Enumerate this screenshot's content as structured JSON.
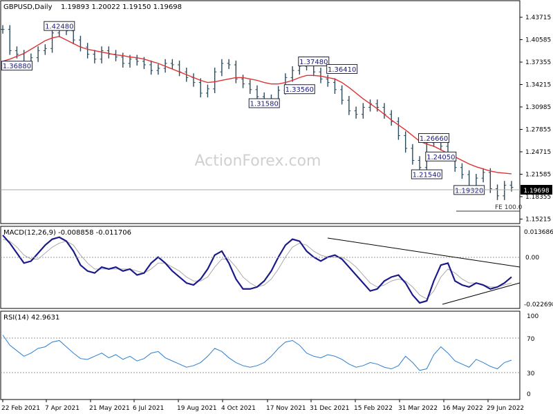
{
  "chart_data": [
    {
      "type": "ohlc",
      "title": "GBPUSD,Daily",
      "ohlc_readout": "1.19893 1.20022 1.19150 1.19698",
      "last_price_label": "1.19698",
      "watermark": "ActionForex.com",
      "y_ticks": [
        "1.43715",
        "1.40585",
        "1.37355",
        "1.34215",
        "1.30985",
        "1.27855",
        "1.24715",
        "1.21585",
        "1.18355",
        "1.15215"
      ],
      "x_labels": [
        "22 Feb 2021",
        "7 Apr 2021",
        "21 May 2021",
        "6 Jul 2021",
        "19 Aug 2021",
        "4 Oct 2021",
        "17 Nov 2021",
        "31 Dec 2021",
        "15 Feb 2022",
        "31 Mar 2022",
        "16 May 2022",
        "29 Jun 2022"
      ],
      "price_close_series": [
        1.42,
        1.39,
        1.385,
        1.37,
        1.38,
        1.39,
        1.393,
        1.415,
        1.424,
        1.418,
        1.405,
        1.395,
        1.385,
        1.378,
        1.39,
        1.385,
        1.381,
        1.372,
        1.378,
        1.375,
        1.37,
        1.362,
        1.365,
        1.372,
        1.37,
        1.36,
        1.352,
        1.345,
        1.33,
        1.336,
        1.36,
        1.372,
        1.37,
        1.35,
        1.343,
        1.335,
        1.325,
        1.318,
        1.322,
        1.334,
        1.352,
        1.362,
        1.368,
        1.37,
        1.36,
        1.35,
        1.345,
        1.335,
        1.32,
        1.305,
        1.3,
        1.31,
        1.315,
        1.31,
        1.3,
        1.29,
        1.27,
        1.252,
        1.235,
        1.225,
        1.26,
        1.265,
        1.255,
        1.24,
        1.225,
        1.215,
        1.195,
        1.21,
        1.218,
        1.195,
        1.185,
        1.2,
        1.197
      ],
      "ma_series": [
        1.375,
        1.378,
        1.382,
        1.386,
        1.392,
        1.398,
        1.404,
        1.408,
        1.41,
        1.405,
        1.4,
        1.395,
        1.392,
        1.39,
        1.388,
        1.386,
        1.384,
        1.383,
        1.381,
        1.38,
        1.378,
        1.375,
        1.372,
        1.368,
        1.364,
        1.36,
        1.356,
        1.352,
        1.348,
        1.345,
        1.346,
        1.348,
        1.35,
        1.352,
        1.352,
        1.35,
        1.348,
        1.345,
        1.343,
        1.343,
        1.345,
        1.348,
        1.352,
        1.355,
        1.355,
        1.354,
        1.352,
        1.35,
        1.345,
        1.338,
        1.33,
        1.322,
        1.315,
        1.308,
        1.3,
        1.292,
        1.285,
        1.278,
        1.27,
        1.262,
        1.258,
        1.255,
        1.25,
        1.245,
        1.24,
        1.235,
        1.23,
        1.226,
        1.223,
        1.22,
        1.218,
        1.217,
        1.216
      ],
      "annotations": [
        {
          "label": "1.42480",
          "x_index": 8
        },
        {
          "label": "1.36880",
          "x_index": 2
        },
        {
          "label": "1.37480",
          "x_index": 44
        },
        {
          "label": "1.36410",
          "x_index": 48
        },
        {
          "label": "1.33560",
          "x_index": 42
        },
        {
          "label": "1.31580",
          "x_index": 37
        },
        {
          "label": "1.26660",
          "x_index": 61
        },
        {
          "label": "1.24050",
          "x_index": 62
        },
        {
          "label": "1.21540",
          "x_index": 60
        },
        {
          "label": "1.19320",
          "x_index": 66
        }
      ],
      "fe_label": "FE 100.0"
    },
    {
      "type": "line",
      "title": "MACD(12,26,9) -0.008858 -0.011706",
      "y_ticks": [
        "0.013686",
        "0.00",
        "-0.022698"
      ],
      "macd_series": [
        0.012,
        0.008,
        0.003,
        -0.002,
        -0.001,
        0.003,
        0.007,
        0.01,
        0.011,
        0.009,
        0.004,
        -0.003,
        -0.006,
        -0.007,
        -0.004,
        -0.005,
        -0.004,
        -0.006,
        -0.005,
        -0.008,
        -0.007,
        -0.002,
        0.001,
        -0.002,
        -0.006,
        -0.009,
        -0.012,
        -0.013,
        -0.01,
        -0.005,
        0.002,
        0.004,
        -0.002,
        -0.01,
        -0.015,
        -0.015,
        -0.014,
        -0.011,
        -0.006,
        0.001,
        0.007,
        0.01,
        0.009,
        0.004,
        0.001,
        -0.001,
        0.001,
        0.002,
        0.0,
        -0.004,
        -0.008,
        -0.012,
        -0.016,
        -0.015,
        -0.011,
        -0.009,
        -0.008,
        -0.012,
        -0.018,
        -0.022,
        -0.021,
        -0.011,
        -0.003,
        -0.002,
        -0.011,
        -0.013,
        -0.014,
        -0.012,
        -0.013,
        -0.015,
        -0.014,
        -0.012,
        -0.009
      ],
      "signal_series": [
        0.01,
        0.009,
        0.006,
        0.002,
        0.0,
        0.0,
        0.003,
        0.006,
        0.008,
        0.009,
        0.007,
        0.002,
        -0.002,
        -0.005,
        -0.005,
        -0.005,
        -0.005,
        -0.005,
        -0.005,
        -0.006,
        -0.007,
        -0.005,
        -0.002,
        -0.002,
        -0.004,
        -0.006,
        -0.009,
        -0.011,
        -0.011,
        -0.009,
        -0.004,
        0.0,
        0.0,
        -0.004,
        -0.009,
        -0.012,
        -0.014,
        -0.013,
        -0.01,
        -0.005,
        0.001,
        0.006,
        0.008,
        0.007,
        0.004,
        0.002,
        0.001,
        0.001,
        0.001,
        -0.001,
        -0.004,
        -0.008,
        -0.012,
        -0.014,
        -0.013,
        -0.011,
        -0.01,
        -0.011,
        -0.014,
        -0.018,
        -0.02,
        -0.016,
        -0.009,
        -0.005,
        -0.007,
        -0.01,
        -0.012,
        -0.012,
        -0.013,
        -0.014,
        -0.014,
        -0.013,
        -0.012
      ]
    },
    {
      "type": "line",
      "title": "RSI(14) 42.9631",
      "y_ticks": [
        "100",
        "70",
        "30",
        "0"
      ],
      "rsi_series": [
        75,
        62,
        55,
        48,
        52,
        58,
        60,
        66,
        68,
        60,
        52,
        45,
        44,
        48,
        52,
        46,
        50,
        44,
        48,
        42,
        45,
        52,
        54,
        46,
        42,
        38,
        34,
        36,
        40,
        48,
        58,
        54,
        46,
        40,
        36,
        34,
        36,
        40,
        48,
        58,
        66,
        68,
        62,
        52,
        48,
        46,
        50,
        48,
        44,
        38,
        34,
        36,
        40,
        38,
        34,
        32,
        36,
        48,
        40,
        30,
        32,
        50,
        60,
        52,
        42,
        38,
        34,
        44,
        40,
        35,
        32,
        40,
        43
      ]
    }
  ]
}
